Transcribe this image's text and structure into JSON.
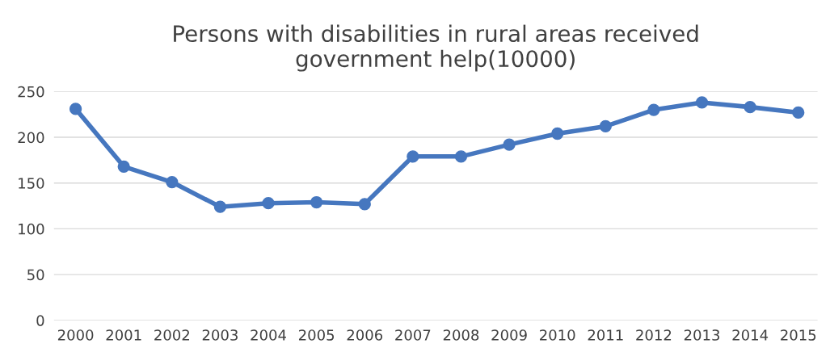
{
  "chart_data": {
    "type": "line",
    "title": "Persons with disabilities in rural areas received\ngovernment help(10000)",
    "categories": [
      "2000",
      "2001",
      "2002",
      "2003",
      "2004",
      "2005",
      "2006",
      "2007",
      "2008",
      "2009",
      "2010",
      "2011",
      "2012",
      "2013",
      "2014",
      "2015"
    ],
    "series": [
      {
        "color": "#4677bf",
        "values": [
          231,
          168,
          151,
          124,
          128,
          129,
          127,
          179,
          179,
          192,
          204,
          212,
          230,
          238,
          233,
          227
        ]
      }
    ],
    "ylim": [
      0,
      250
    ],
    "yticks": [
      0,
      50,
      100,
      150,
      200,
      250
    ],
    "grid": "y",
    "marker": "circle",
    "line_style": "solid"
  }
}
